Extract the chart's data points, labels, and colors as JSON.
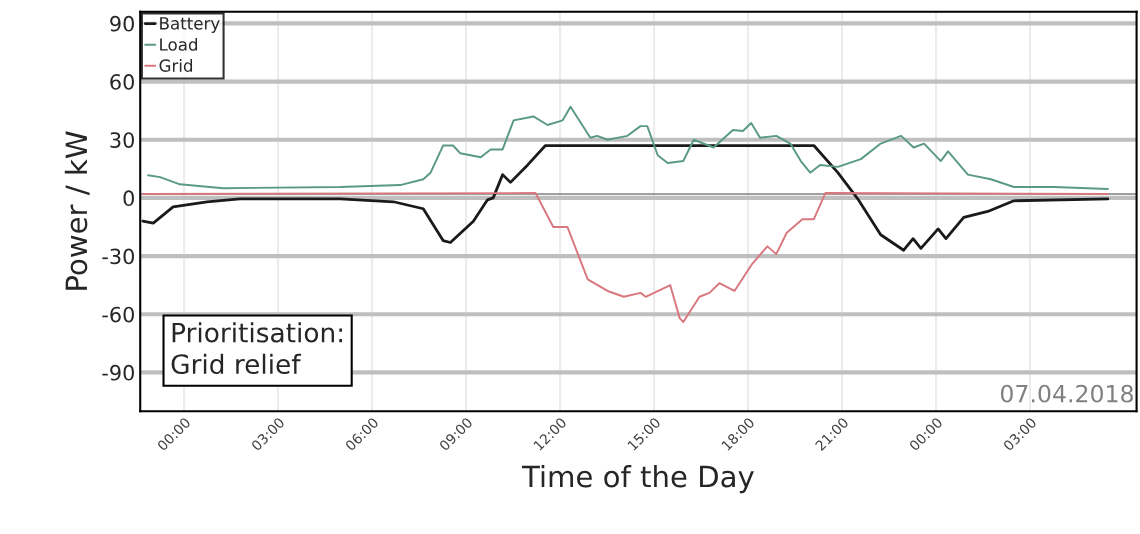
{
  "chart_data": {
    "type": "line",
    "xlabel": "Time of the Day",
    "ylabel": "Power / kW",
    "xlim": [
      "2018-04-06T22:36",
      "2018-04-08T06:24"
    ],
    "ylim": [
      -110,
      96
    ],
    "xticks": [
      {
        "value": "2018-04-07T00:00",
        "label": "00:00"
      },
      {
        "value": "2018-04-07T03:00",
        "label": "03:00"
      },
      {
        "value": "2018-04-07T06:00",
        "label": "06:00"
      },
      {
        "value": "2018-04-07T09:00",
        "label": "09:00"
      },
      {
        "value": "2018-04-07T12:00",
        "label": "12:00"
      },
      {
        "value": "2018-04-07T15:00",
        "label": "15:00"
      },
      {
        "value": "2018-04-07T18:00",
        "label": "18:00"
      },
      {
        "value": "2018-04-07T21:00",
        "label": "21:00"
      },
      {
        "value": "2018-04-08T00:00",
        "label": "00:00"
      },
      {
        "value": "2018-04-08T03:00",
        "label": "03:00"
      }
    ],
    "yticks": [
      -90,
      -60,
      -30,
      0,
      30,
      60,
      90
    ],
    "grid": true,
    "legend": "top left",
    "ref_lines": [
      {
        "axis": "y",
        "value": 2,
        "color": "#808080"
      }
    ],
    "annotations": [
      "Prioritisation:\nGrid relief",
      "07.04.2018"
    ],
    "series": [
      {
        "name": "Battery",
        "color": "#1a1a1a",
        "x": [
          "2018-04-06T22:41",
          "2018-04-06T23:01",
          "2018-04-06T23:39",
          "2018-04-07T00:44",
          "2018-04-07T01:47",
          "2018-04-07T04:59",
          "2018-04-07T06:41",
          "2018-04-07T07:38",
          "2018-04-07T08:16",
          "2018-04-07T08:30",
          "2018-04-07T09:14",
          "2018-04-07T09:41",
          "2018-04-07T09:52",
          "2018-04-07T10:10",
          "2018-04-07T10:25",
          "2018-04-07T10:58",
          "2018-04-07T11:32",
          "2018-04-07T20:06",
          "2018-04-07T20:52",
          "2018-04-07T21:30",
          "2018-04-07T22:14",
          "2018-04-07T22:58",
          "2018-04-07T23:16",
          "2018-04-07T23:31",
          "2018-04-08T00:04",
          "2018-04-08T00:19",
          "2018-04-08T00:53",
          "2018-04-08T01:39",
          "2018-04-08T02:29",
          "2018-04-08T05:29"
        ],
        "values": [
          -12,
          -13,
          -4.6,
          -2,
          -0.5,
          -0.5,
          -2,
          -5.6,
          -22,
          -23,
          -12,
          -1,
          0,
          12,
          8,
          17,
          27,
          27,
          13,
          -0.5,
          -19,
          -27,
          -21,
          -26,
          -16,
          -21,
          -10,
          -7,
          -1.5,
          -0.5
        ]
      },
      {
        "name": "Load",
        "color": "#5a9a80",
        "x": [
          "2018-04-06T22:51",
          "2018-04-06T23:14",
          "2018-04-06T23:52",
          "2018-04-07T01:15",
          "2018-04-07T04:59",
          "2018-04-07T06:54",
          "2018-04-07T07:38",
          "2018-04-07T07:52",
          "2018-04-07T08:16",
          "2018-04-07T08:35",
          "2018-04-07T08:49",
          "2018-04-07T09:28",
          "2018-04-07T09:47",
          "2018-04-07T10:10",
          "2018-04-07T10:31",
          "2018-04-07T11:09",
          "2018-04-07T11:36",
          "2018-04-07T12:05",
          "2018-04-07T12:20",
          "2018-04-07T12:58",
          "2018-04-07T13:11",
          "2018-04-07T13:31",
          "2018-04-07T14:09",
          "2018-04-07T14:34",
          "2018-04-07T14:47",
          "2018-04-07T15:07",
          "2018-04-07T15:26",
          "2018-04-07T15:56",
          "2018-04-07T16:16",
          "2018-04-07T16:54",
          "2018-04-07T17:31",
          "2018-04-07T17:50",
          "2018-04-07T18:06",
          "2018-04-07T18:23",
          "2018-04-07T18:54",
          "2018-04-07T19:21",
          "2018-04-07T19:41",
          "2018-04-07T19:59",
          "2018-04-07T20:18",
          "2018-04-07T20:52",
          "2018-04-07T21:36",
          "2018-04-07T22:14",
          "2018-04-07T22:53",
          "2018-04-07T23:17",
          "2018-04-07T23:37",
          "2018-04-08T00:09",
          "2018-04-08T00:23",
          "2018-04-08T01:01",
          "2018-04-08T01:45",
          "2018-04-08T02:29",
          "2018-04-08T03:46",
          "2018-04-08T05:29"
        ],
        "values": [
          11.7,
          10.7,
          7,
          5,
          5.6,
          6.6,
          9.6,
          13,
          27,
          27,
          23,
          21,
          25,
          25,
          40,
          42,
          37.6,
          40,
          47,
          31,
          32,
          30,
          32,
          37,
          37,
          22,
          18,
          19,
          30,
          26,
          35,
          34.5,
          38.6,
          31,
          32,
          28,
          19,
          13,
          17,
          16,
          20,
          28,
          32,
          26,
          28,
          19,
          24,
          12,
          9.6,
          5.6,
          5.6,
          4.6
        ]
      },
      {
        "name": "Grid",
        "color": "#d9777f",
        "x": [
          "2018-04-06T22:41",
          "2018-04-07T11:13",
          "2018-04-07T11:47",
          "2018-04-07T12:14",
          "2018-04-07T12:53",
          "2018-04-07T13:31",
          "2018-04-07T14:02",
          "2018-04-07T14:34",
          "2018-04-07T14:44",
          "2018-04-07T15:31",
          "2018-04-07T15:49",
          "2018-04-07T15:56",
          "2018-04-07T16:27",
          "2018-04-07T16:46",
          "2018-04-07T17:05",
          "2018-04-07T17:34",
          "2018-04-07T18:08",
          "2018-04-07T18:37",
          "2018-04-07T18:54",
          "2018-04-07T19:14",
          "2018-04-07T19:44",
          "2018-04-07T20:06",
          "2018-04-07T20:28",
          "2018-04-08T05:29"
        ],
        "values": [
          2,
          2.5,
          -15,
          -15,
          -42,
          -48,
          -51,
          -49,
          -51,
          -45,
          -62,
          -64,
          -51,
          -49,
          -44,
          -48,
          -34,
          -25,
          -29,
          -18,
          -11,
          -11,
          2.5,
          2
        ]
      }
    ]
  }
}
